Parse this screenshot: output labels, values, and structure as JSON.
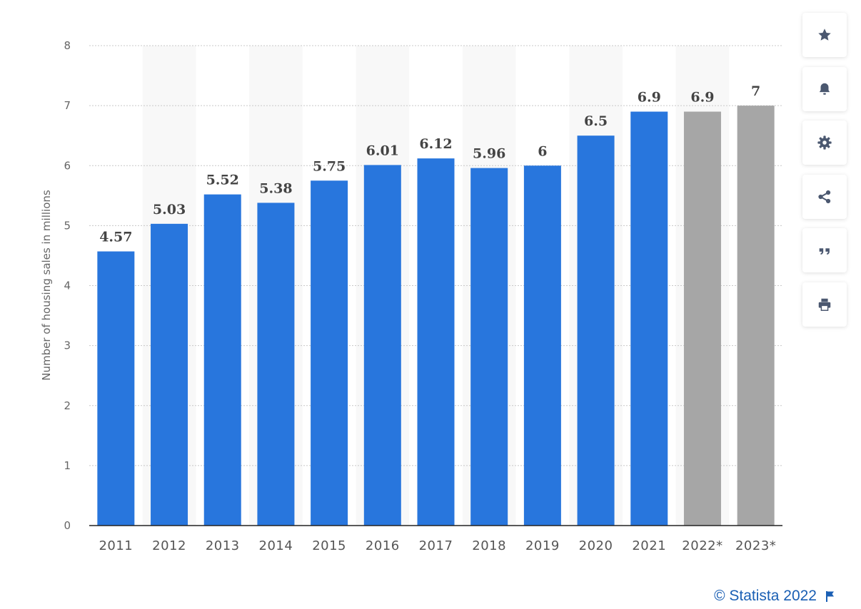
{
  "chart_data": {
    "type": "bar",
    "categories": [
      "2011",
      "2012",
      "2013",
      "2014",
      "2015",
      "2016",
      "2017",
      "2018",
      "2019",
      "2020",
      "2021",
      "2022*",
      "2023*"
    ],
    "values": [
      4.57,
      5.03,
      5.52,
      5.38,
      5.75,
      6.01,
      6.12,
      5.96,
      6,
      6.5,
      6.9,
      6.9,
      7
    ],
    "value_labels": [
      "4.57",
      "5.03",
      "5.52",
      "5.38",
      "5.75",
      "6.01",
      "6.12",
      "5.96",
      "6",
      "6.5",
      "6.9",
      "6.9",
      "7"
    ],
    "forecast": [
      false,
      false,
      false,
      false,
      false,
      false,
      false,
      false,
      false,
      false,
      false,
      true,
      true
    ],
    "ylabel": "Number of housing sales in millions",
    "ylim": [
      0,
      8
    ],
    "yticks": [
      "0",
      "1",
      "2",
      "3",
      "4",
      "5",
      "6",
      "7",
      "8"
    ],
    "grid": true,
    "colors": {
      "actual": "#2876dd",
      "forecast": "#a6a6a6",
      "band": "#f8f8f8"
    }
  },
  "toolbar": [
    {
      "name": "favorite-button",
      "icon": "star-icon"
    },
    {
      "name": "notification-button",
      "icon": "bell-icon"
    },
    {
      "name": "settings-button",
      "icon": "gear-icon"
    },
    {
      "name": "share-button",
      "icon": "share-icon"
    },
    {
      "name": "cite-button",
      "icon": "quote-icon"
    },
    {
      "name": "print-button",
      "icon": "print-icon"
    }
  ],
  "credit": {
    "text": "© Statista 2022",
    "icon": "flag-icon"
  },
  "colors": {
    "icon": "#4b5870",
    "link": "#1a5fb4"
  }
}
